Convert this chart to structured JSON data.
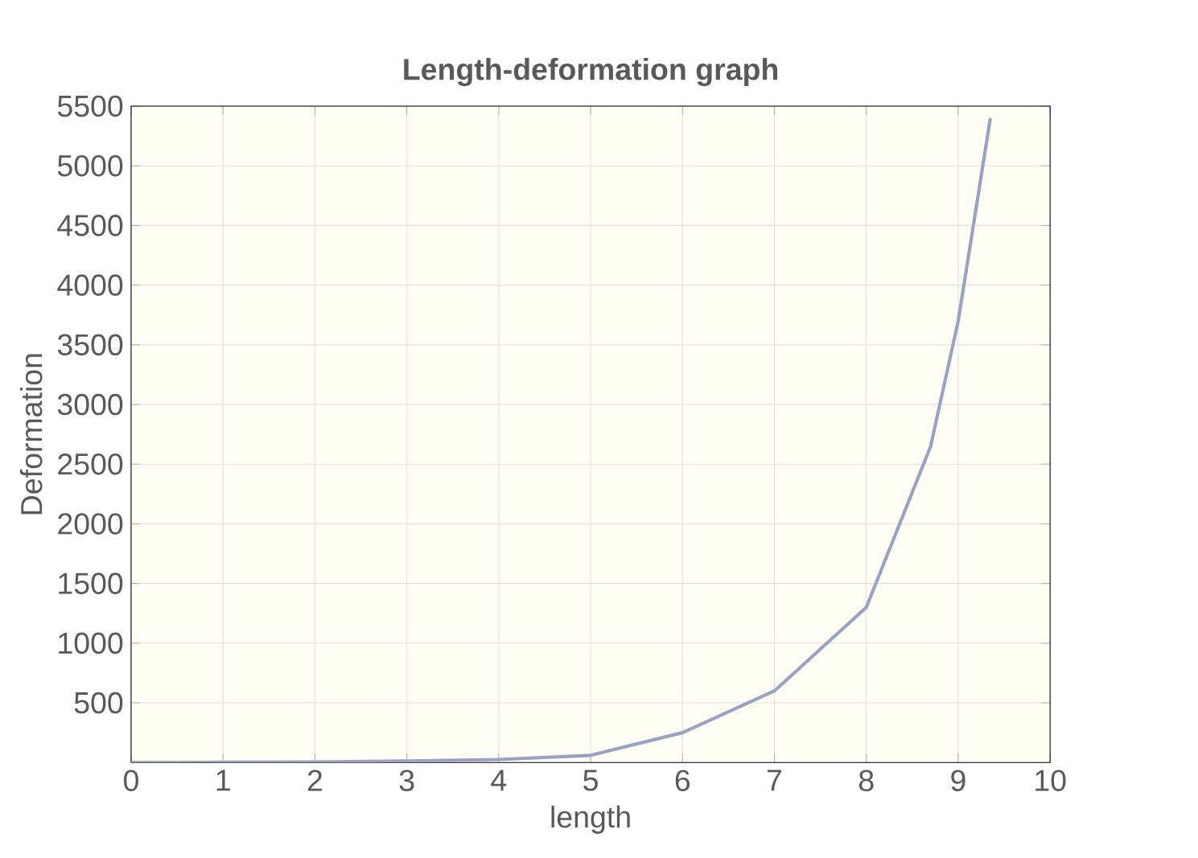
{
  "chart_data": {
    "type": "line",
    "title": "Length-deformation graph",
    "xlabel": "length",
    "ylabel": "Deformation",
    "x": [
      0,
      1,
      2,
      3,
      4,
      5,
      6,
      7,
      8,
      8.7,
      9,
      9.35
    ],
    "series": [
      {
        "color": "#9aa2c4",
        "values": [
          0,
          2,
          5,
          12,
          25,
          60,
          250,
          600,
          1300,
          2650,
          3700,
          5400
        ]
      }
    ],
    "xlim": [
      0,
      10
    ],
    "ylim": [
      0,
      5500
    ],
    "xticks": [
      0,
      1,
      2,
      3,
      4,
      5,
      6,
      7,
      8,
      9,
      10
    ],
    "yticks": [
      500,
      1000,
      1500,
      2000,
      2500,
      3000,
      3500,
      4000,
      4500,
      5000,
      5500
    ],
    "grid": true
  }
}
